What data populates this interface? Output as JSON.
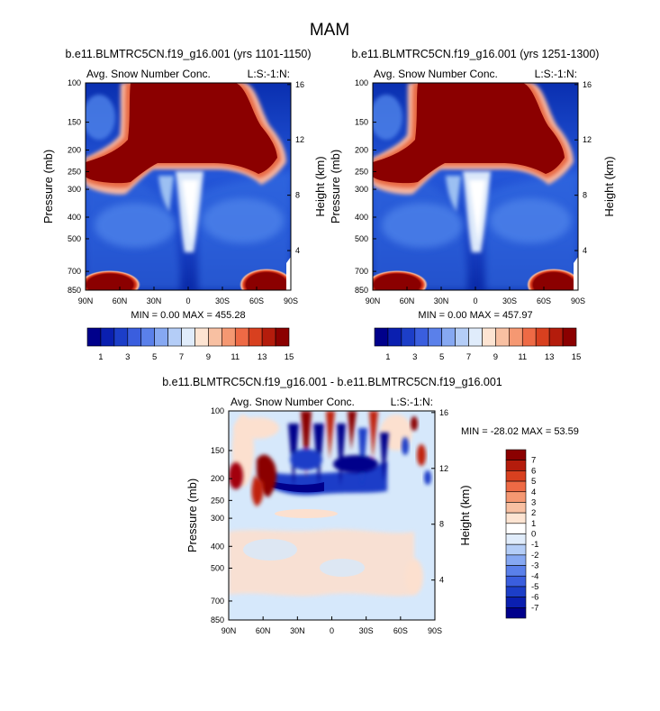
{
  "main_title": "MAM",
  "colors": {
    "dark_red": "#8B0000",
    "dark_blue": "#00008B",
    "light_blue": "#D6E8FB",
    "light_peach": "#FCE0CF"
  },
  "chart_data": [
    {
      "type": "heatmap",
      "title": "b.e11.BLMTRC5CN.f19_g16.001 (yrs 1101-1150)",
      "subtitle_left": "Avg. Snow Number Conc.",
      "subtitle_right": "L:S:-1:N:",
      "ylabel": "Pressure (mb)",
      "ylabel_right": "Height (km)",
      "x_ticks": [
        "90N",
        "60N",
        "30N",
        "0",
        "30S",
        "60S",
        "90S"
      ],
      "y_ticks": [
        "100",
        "150",
        "200",
        "250",
        "300",
        "400",
        "500",
        "700",
        "850"
      ],
      "y_right_ticks": [
        "16",
        "12",
        "8",
        "4"
      ],
      "ylim": [
        850,
        100
      ],
      "stats": "MIN =  0.00   MAX = 455.28",
      "colorbar_labels": [
        "1",
        "3",
        "5",
        "7",
        "9",
        "11",
        "13",
        "15"
      ]
    },
    {
      "type": "heatmap",
      "title": "b.e11.BLMTRC5CN.f19_g16.001 (yrs 1251-1300)",
      "subtitle_left": "Avg. Snow Number Conc.",
      "subtitle_right": "L:S:-1:N:",
      "ylabel": "Pressure (mb)",
      "ylabel_right": "Height (km)",
      "x_ticks": [
        "90N",
        "60N",
        "30N",
        "0",
        "30S",
        "60S",
        "90S"
      ],
      "y_ticks": [
        "100",
        "150",
        "200",
        "250",
        "300",
        "400",
        "500",
        "700",
        "850"
      ],
      "y_right_ticks": [
        "16",
        "12",
        "8",
        "4"
      ],
      "ylim": [
        850,
        100
      ],
      "stats": "MIN =  0.00   MAX = 457.97",
      "colorbar_labels": [
        "1",
        "3",
        "5",
        "7",
        "9",
        "11",
        "13",
        "15"
      ]
    },
    {
      "type": "heatmap",
      "title": "b.e11.BLMTRC5CN.f19_g16.001 - b.e11.BLMTRC5CN.f19_g16.001",
      "subtitle_left": "Avg. Snow Number Conc.",
      "subtitle_right": "L:S:-1:N:",
      "ylabel": "Pressure (mb)",
      "ylabel_right": "Height (km)",
      "x_ticks": [
        "90N",
        "60N",
        "30N",
        "0",
        "30S",
        "60S",
        "90S"
      ],
      "y_ticks": [
        "100",
        "150",
        "200",
        "250",
        "300",
        "400",
        "500",
        "700",
        "850"
      ],
      "y_right_ticks": [
        "16",
        "12",
        "8",
        "4"
      ],
      "ylim": [
        850,
        100
      ],
      "stats": "MIN = -28.02   MAX =  53.59",
      "colorbar_labels": [
        "7",
        "6",
        "5",
        "4",
        "3",
        "2",
        "1",
        "0",
        "-1",
        "-2",
        "-3",
        "-4",
        "-5",
        "-6",
        "-7"
      ]
    }
  ]
}
